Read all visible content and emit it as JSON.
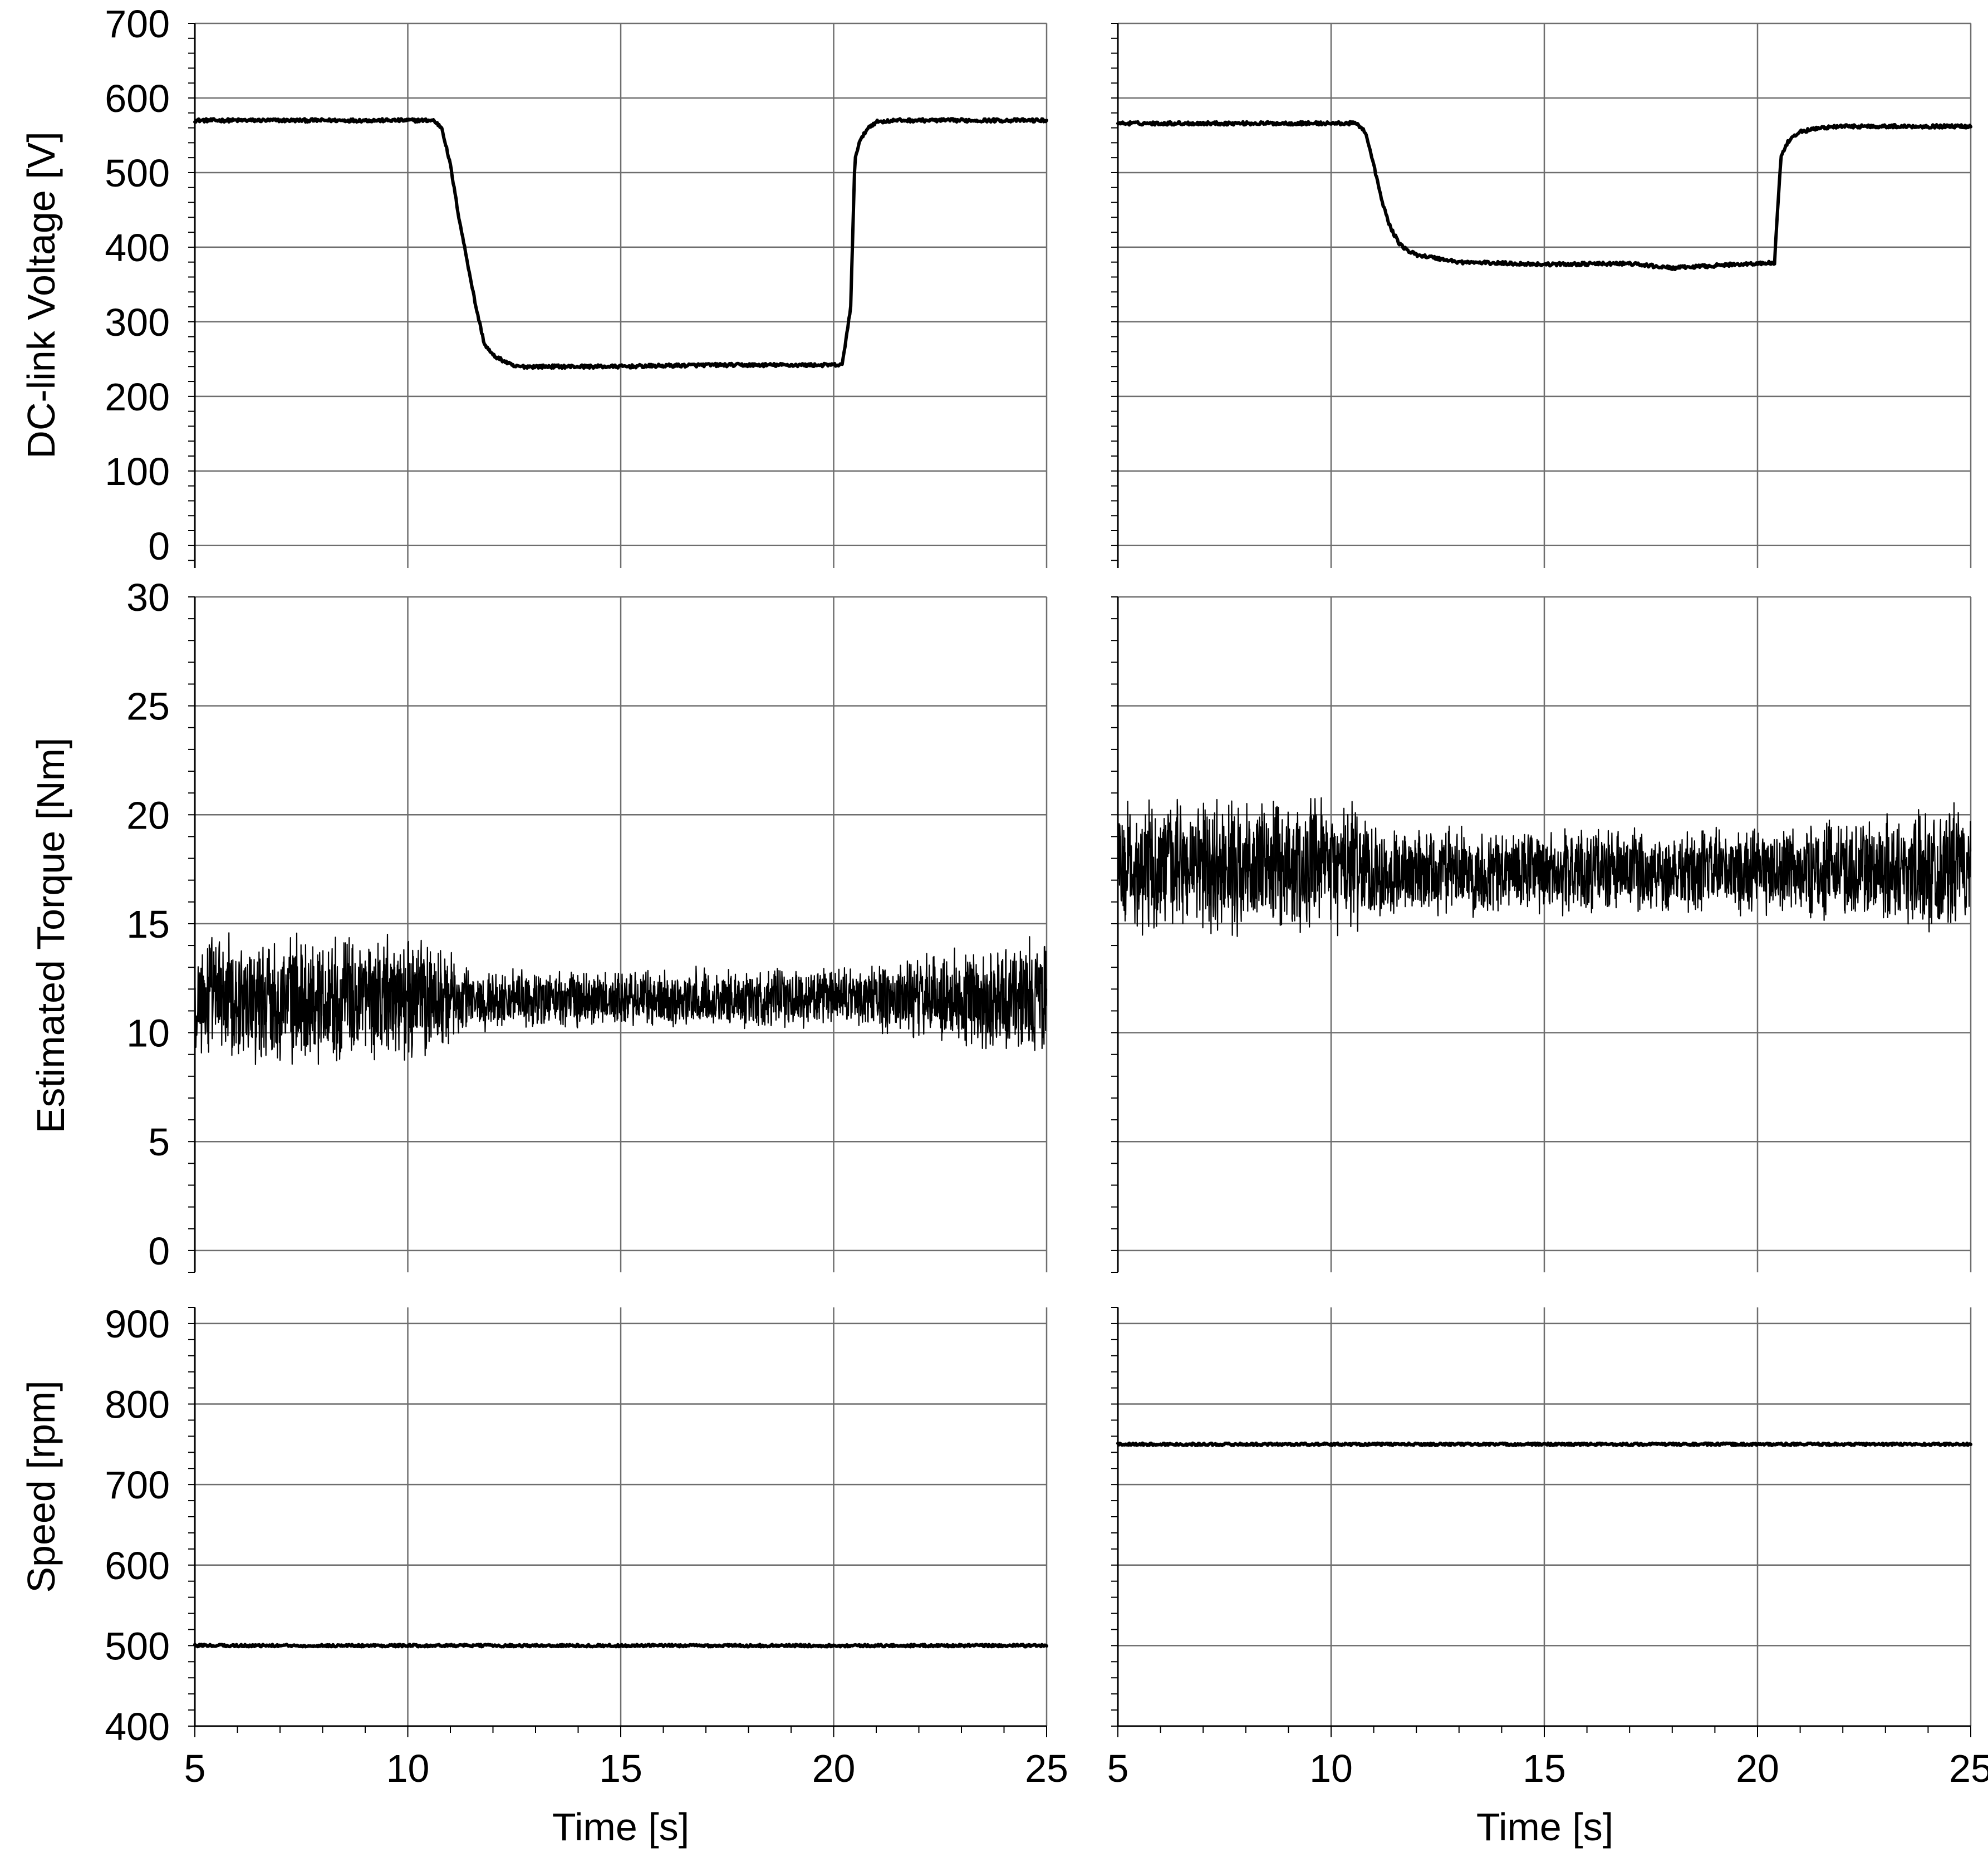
{
  "chart_data": [
    {
      "type": "line",
      "ylabel": "DC-link Voltage [V]",
      "xlabel": "",
      "xlim": [
        5,
        25
      ],
      "ylim": [
        -30,
        700
      ],
      "x_ticks": [
        5,
        10,
        15,
        20,
        25
      ],
      "y_ticks": [
        0,
        100,
        200,
        300,
        400,
        500,
        600,
        700
      ],
      "grid": true,
      "series": [
        {
          "x": [
            5,
            10.6,
            10.8,
            11.0,
            11.2,
            11.4,
            11.6,
            11.8,
            12.0,
            12.5,
            13.0,
            15.0,
            17.0,
            19.0,
            20.0,
            20.2,
            20.4,
            20.5,
            20.6,
            20.8,
            21.0,
            21.5,
            25
          ],
          "values": [
            570,
            570,
            560,
            510,
            440,
            380,
            320,
            270,
            255,
            240,
            240,
            240,
            242,
            242,
            242,
            242,
            320,
            520,
            540,
            560,
            568,
            570,
            570
          ]
        },
        {
          "x": [
            5,
            10.6,
            10.8,
            11.0,
            11.2,
            11.4,
            11.6,
            11.8,
            12.0,
            12.5,
            13.0,
            15.0,
            17.0,
            18.0,
            19.5,
            20.4,
            20.45,
            20.55,
            20.7,
            21.0,
            21.5,
            22.0,
            25
          ],
          "values": [
            566,
            566,
            555,
            510,
            460,
            425,
            405,
            395,
            390,
            385,
            380,
            377,
            378,
            372,
            377,
            379,
            430,
            520,
            540,
            555,
            560,
            562,
            562
          ]
        }
      ]
    },
    {
      "type": "line",
      "ylabel": "Estimated Torque [Nm]",
      "xlabel": "",
      "xlim": [
        5,
        25
      ],
      "ylim": [
        -1,
        30
      ],
      "x_ticks": [
        5,
        10,
        15,
        20,
        25
      ],
      "y_ticks": [
        0,
        5,
        10,
        15,
        20,
        25,
        30
      ],
      "grid": true,
      "series": [
        {
          "x": [
            5,
            10.5,
            11.5,
            20.3,
            25
          ],
          "values": [
            11.6,
            11.6,
            11.5,
            11.6,
            11.6
          ],
          "noise_amplitude": [
            3.2,
            3.2,
            1.5,
            1.5,
            3.2
          ]
        },
        {
          "x": [
            5,
            10.5,
            11.5,
            20.5,
            25
          ],
          "values": [
            17.6,
            17.6,
            17.4,
            17.4,
            17.6
          ],
          "noise_amplitude": [
            3.3,
            3.3,
            2.2,
            2.2,
            3.3
          ]
        }
      ]
    },
    {
      "type": "line",
      "ylabel": "Speed [rpm]",
      "xlabel": "Time [s]",
      "xlim": [
        5,
        25
      ],
      "ylim": [
        400,
        920
      ],
      "x_ticks": [
        5,
        10,
        15,
        20,
        25
      ],
      "y_ticks": [
        400,
        500,
        600,
        700,
        800,
        900
      ],
      "grid": true,
      "series": [
        {
          "x": [
            5,
            25
          ],
          "values": [
            500,
            500
          ]
        },
        {
          "x": [
            5,
            25
          ],
          "values": [
            750,
            750
          ]
        }
      ]
    }
  ]
}
